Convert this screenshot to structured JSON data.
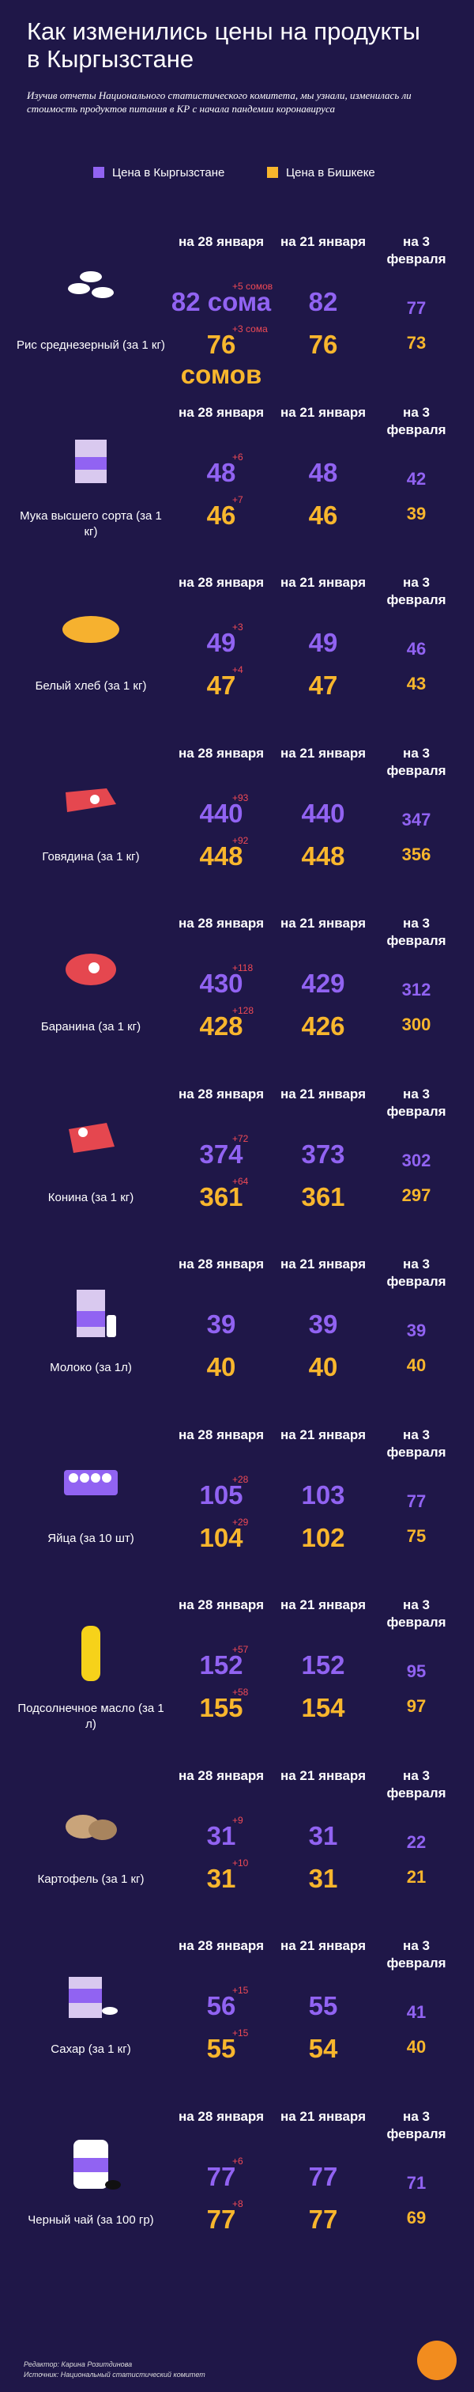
{
  "header": {
    "title": "Как изменились цены на продукты в Кыргызстане",
    "subtitle": "Изучив отчеты Национального статистического комитета, мы узнали, изменилась ли стоимость продуктов питания в КР с начала пандемии коронавируса"
  },
  "legend": [
    {
      "label": "Цена в Кыргызстане",
      "color": "#9163f2"
    },
    {
      "label": "Цена в Бишкеке",
      "color": "#f8b62d"
    }
  ],
  "columns": [
    "на 28 января",
    "на 21 января",
    "на 3 февраля"
  ],
  "items": [
    {
      "name": "Рис среднезерный (за 1 кг)",
      "kg": [
        82,
        82,
        77
      ],
      "bishkek": [
        76,
        76,
        73
      ],
      "kg_label": "82 сома",
      "bishkek_label": "76 сомов",
      "kg_change": "+5 сомов",
      "bishkek_change": "+3 сома"
    },
    {
      "name": "Мука высшего сорта (за 1 кг)",
      "kg": [
        48,
        48,
        42
      ],
      "bishkek": [
        46,
        46,
        39
      ],
      "kg_change": "+6",
      "bishkek_change": "+7"
    },
    {
      "name": "Белый хлеб (за 1 кг)",
      "kg": [
        49,
        49,
        46
      ],
      "bishkek": [
        47,
        47,
        43
      ],
      "kg_change": "+3",
      "bishkek_change": "+4"
    },
    {
      "name": "Говядина (за 1 кг)",
      "kg": [
        440,
        440,
        347
      ],
      "bishkek": [
        448,
        448,
        356
      ],
      "kg_change": "+93",
      "bishkek_change": "+92"
    },
    {
      "name": "Баранина (за 1 кг)",
      "kg": [
        430,
        429,
        312
      ],
      "bishkek": [
        428,
        426,
        300
      ],
      "kg_change": "+118",
      "bishkek_change": "+128"
    },
    {
      "name": "Конина (за 1 кг)",
      "kg": [
        374,
        373,
        302
      ],
      "bishkek": [
        361,
        361,
        297
      ],
      "kg_change": "+72",
      "bishkek_change": "+64"
    },
    {
      "name": "Молоко (за 1л)",
      "kg": [
        39,
        39,
        39
      ],
      "bishkek": [
        40,
        40,
        40
      ]
    },
    {
      "name": "Яйца (за 10 шт)",
      "kg": [
        105,
        103,
        77
      ],
      "bishkek": [
        104,
        102,
        75
      ],
      "kg_change": "+28",
      "bishkek_change": "+29"
    },
    {
      "name": "Подсолнечное масло (за 1 л)",
      "kg": [
        152,
        152,
        95
      ],
      "bishkek": [
        155,
        154,
        97
      ],
      "kg_change": "+57",
      "bishkek_change": "+58"
    },
    {
      "name": "Картофель (за 1 кг)",
      "kg": [
        31,
        31,
        22
      ],
      "bishkek": [
        31,
        31,
        21
      ],
      "kg_change": "+9",
      "bishkek_change": "+10"
    },
    {
      "name": "Сахар (за 1 кг)",
      "kg": [
        56,
        55,
        41
      ],
      "bishkek": [
        55,
        54,
        40
      ],
      "kg_change": "+15",
      "bishkek_change": "+15"
    },
    {
      "name": "Черный чай (за 100 гр)",
      "kg": [
        77,
        77,
        71
      ],
      "bishkek": [
        77,
        77,
        69
      ],
      "kg_change": "+6",
      "bishkek_change": "+8"
    }
  ],
  "footer": {
    "editor": "Редактор: Карина Розитдинова",
    "source": "Источник: Национальный статистический комитет"
  }
}
